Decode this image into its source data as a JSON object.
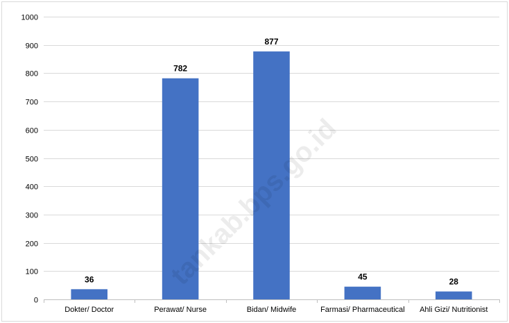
{
  "chart_data": {
    "type": "bar",
    "categories": [
      "Dokter/ Doctor",
      "Perawat/ Nurse",
      "Bidan/ Midwife",
      "Farmasi/ Pharmaceutical",
      "Ahli Gizi/ Nutritionist"
    ],
    "values": [
      36,
      782,
      877,
      45,
      28
    ],
    "data_labels": [
      "36",
      "782",
      "877",
      "45",
      "28"
    ],
    "title": "",
    "xlabel": "",
    "ylabel": "",
    "ylim": [
      0,
      1000
    ],
    "yticks": [
      0,
      100,
      200,
      300,
      400,
      500,
      600,
      700,
      800,
      900,
      1000
    ],
    "grid": true,
    "legend": "none",
    "bar_color": "#4472c4"
  },
  "watermark": "tankab.bps.go.id"
}
